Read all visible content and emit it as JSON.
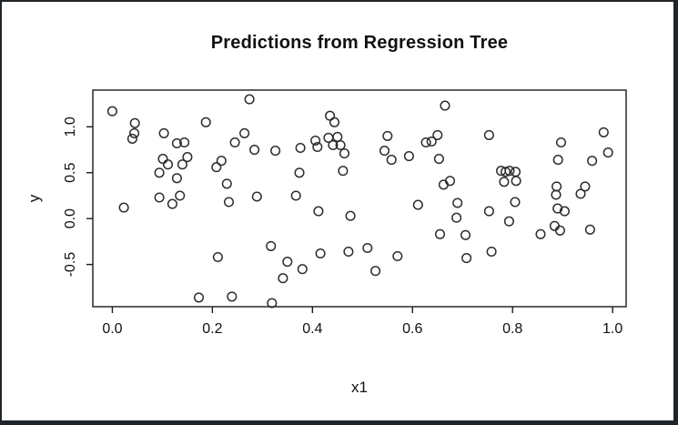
{
  "window": {
    "frame_color": "#1f2429",
    "panel_color": "#ffffff"
  },
  "chart_data": {
    "type": "scatter",
    "title": "Predictions from Regression Tree",
    "xlabel": "x1",
    "ylabel": "y",
    "marker": "open-circle",
    "marker_color": "#2d2d2d",
    "grid": false,
    "legend": null,
    "xlim": [
      -0.039,
      1.027
    ],
    "ylim": [
      -0.96,
      1.4
    ],
    "x_tick_labels": [
      "0.0",
      "0.2",
      "0.4",
      "0.6",
      "0.8",
      "1.0"
    ],
    "x_ticks": [
      0.0,
      0.2,
      0.4,
      0.6,
      0.8,
      1.0
    ],
    "y_tick_labels": [
      "-0.5",
      "0.0",
      "0.5",
      "1.0"
    ],
    "y_ticks": [
      -0.5,
      0.0,
      0.5,
      1.0
    ],
    "points": {
      "x": [
        0.0,
        0.045,
        0.044,
        0.04,
        0.103,
        0.187,
        0.129,
        0.144,
        0.101,
        0.111,
        0.15,
        0.14,
        0.094,
        0.129,
        0.218,
        0.208,
        0.229,
        0.023,
        0.094,
        0.12,
        0.135,
        0.211,
        0.173,
        0.274,
        0.264,
        0.245,
        0.284,
        0.326,
        0.376,
        0.406,
        0.41,
        0.435,
        0.444,
        0.432,
        0.45,
        0.441,
        0.456,
        0.464,
        0.461,
        0.374,
        0.289,
        0.233,
        0.367,
        0.412,
        0.476,
        0.317,
        0.35,
        0.38,
        0.341,
        0.416,
        0.472,
        0.239,
        0.319,
        0.665,
        0.55,
        0.544,
        0.558,
        0.593,
        0.627,
        0.638,
        0.65,
        0.653,
        0.753,
        0.662,
        0.675,
        0.982,
        0.897,
        0.991,
        0.959,
        0.891,
        0.777,
        0.786,
        0.794,
        0.806,
        0.783,
        0.807,
        0.888,
        0.887,
        0.936,
        0.945,
        0.611,
        0.69,
        0.688,
        0.753,
        0.655,
        0.706,
        0.51,
        0.57,
        0.526,
        0.708,
        0.758,
        0.805,
        0.793,
        0.89,
        0.904,
        0.884,
        0.895,
        0.856,
        0.955
      ],
      "y": [
        1.17,
        1.04,
        0.93,
        0.87,
        0.93,
        1.05,
        0.82,
        0.83,
        0.65,
        0.59,
        0.67,
        0.59,
        0.5,
        0.44,
        0.63,
        0.56,
        0.38,
        0.12,
        0.23,
        0.16,
        0.25,
        -0.42,
        -0.86,
        1.3,
        0.93,
        0.83,
        0.75,
        0.74,
        0.77,
        0.85,
        0.78,
        1.12,
        1.05,
        0.88,
        0.89,
        0.8,
        0.8,
        0.71,
        0.52,
        0.5,
        0.24,
        0.18,
        0.25,
        0.08,
        0.03,
        -0.3,
        -0.47,
        -0.55,
        -0.65,
        -0.38,
        -0.36,
        -0.85,
        -0.92,
        1.23,
        0.9,
        0.74,
        0.64,
        0.68,
        0.83,
        0.84,
        0.91,
        0.65,
        0.91,
        0.37,
        0.41,
        0.94,
        0.83,
        0.72,
        0.63,
        0.64,
        0.52,
        0.51,
        0.52,
        0.51,
        0.4,
        0.41,
        0.35,
        0.26,
        0.27,
        0.35,
        0.15,
        0.17,
        0.01,
        0.08,
        -0.17,
        -0.18,
        -0.32,
        -0.41,
        -0.57,
        -0.43,
        -0.36,
        0.18,
        -0.03,
        0.11,
        0.08,
        -0.08,
        -0.13,
        -0.17,
        -0.12
      ]
    }
  }
}
